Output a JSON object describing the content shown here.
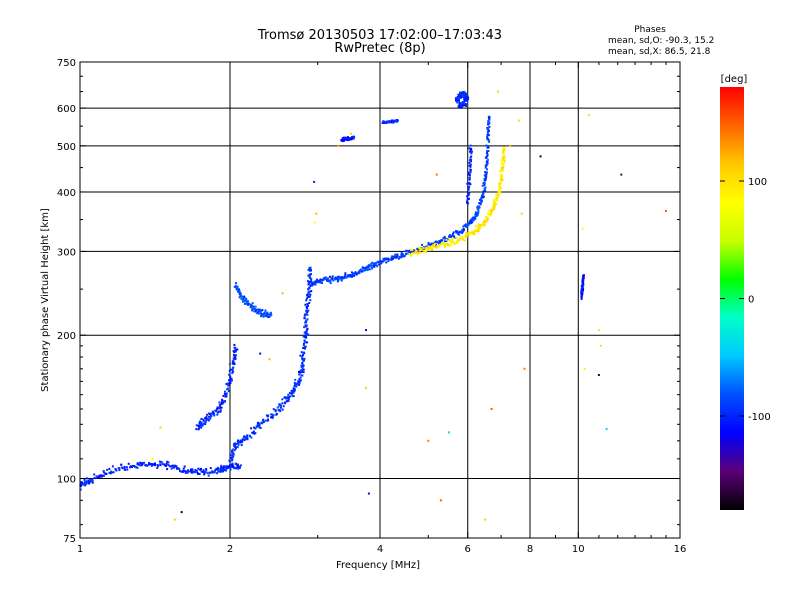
{
  "title": {
    "line1": "Tromsø 20130503 17:02:00–17:03:43",
    "line2": "RwPretec (8p)"
  },
  "phase_info": {
    "header": "Phases",
    "line_o": "mean, sd,O: -90.3, 15.2",
    "line_x": "mean, sd,X:  86.5, 21.8"
  },
  "colorbar": {
    "label": "[deg]",
    "ticks": [
      "100",
      "0",
      "-100"
    ],
    "tick_values": [
      100,
      0,
      -100
    ],
    "range": [
      -180,
      180
    ],
    "colormap": [
      "#000000",
      "#5a0078",
      "#0000ff",
      "#0050ff",
      "#00c8ff",
      "#00ffc8",
      "#00ff00",
      "#c8ff00",
      "#ffff00",
      "#ffc800",
      "#ff6400",
      "#ff0000"
    ]
  },
  "chart_data": {
    "type": "scatter",
    "title": "Tromsø 20130503 17:02:00–17:03:43",
    "subtitle": "RwPretec (8p)",
    "xlabel": "Frequency [MHz]",
    "ylabel": "Stationary phase Virtual Height [km]",
    "xscale": "log",
    "yscale": "log",
    "xlim": [
      1,
      16
    ],
    "ylim": [
      75,
      750
    ],
    "xticks": [
      "1",
      "2",
      "4",
      "6",
      "8",
      "10",
      "16"
    ],
    "xtick_values": [
      1,
      2,
      4,
      6,
      8,
      10,
      16
    ],
    "yticks": [
      "75",
      "100",
      "200",
      "300",
      "400",
      "500",
      "600",
      "750"
    ],
    "ytick_values": [
      75,
      100,
      200,
      300,
      400,
      500,
      600,
      750
    ],
    "vgrid": [
      2,
      4,
      6,
      8,
      10
    ],
    "hgrid": [
      100,
      200,
      300,
      400,
      500,
      600
    ],
    "grid": true,
    "color_dimension": "phase [deg]",
    "traces": [
      {
        "name": "",
        "phase": -100,
        "spread": 0.012,
        "points": [
          [
            1.0,
            97
          ],
          [
            1.05,
            99
          ],
          [
            1.15,
            104
          ],
          [
            1.3,
            107
          ],
          [
            1.45,
            107
          ],
          [
            1.6,
            104
          ],
          [
            1.75,
            103
          ],
          [
            1.9,
            104
          ],
          [
            2.0,
            106
          ],
          [
            2.1,
            106
          ]
        ]
      },
      {
        "name": "",
        "phase": -100,
        "spread": 0.015,
        "points": [
          [
            1.72,
            128
          ],
          [
            1.8,
            134
          ],
          [
            1.9,
            140
          ],
          [
            1.97,
            150
          ],
          [
            2.02,
            170
          ],
          [
            2.05,
            190
          ]
        ]
      },
      {
        "name": "",
        "phase": -95,
        "spread": 0.015,
        "points": [
          [
            2.0,
            108
          ],
          [
            2.05,
            118
          ],
          [
            2.15,
            122
          ],
          [
            2.3,
            130
          ],
          [
            2.5,
            140
          ],
          [
            2.65,
            150
          ],
          [
            2.75,
            160
          ],
          [
            2.8,
            175
          ],
          [
            2.83,
            195
          ],
          [
            2.85,
            220
          ],
          [
            2.88,
            250
          ],
          [
            2.9,
            280
          ]
        ]
      },
      {
        "name": "",
        "phase": -90,
        "spread": 0.01,
        "points": [
          [
            2.9,
            255
          ],
          [
            3.0,
            260
          ],
          [
            3.2,
            262
          ],
          [
            3.4,
            266
          ],
          [
            3.6,
            270
          ],
          [
            3.8,
            278
          ],
          [
            4.0,
            285
          ],
          [
            4.3,
            292
          ],
          [
            4.6,
            300
          ],
          [
            5.0,
            308
          ],
          [
            5.4,
            318
          ],
          [
            5.8,
            330
          ],
          [
            6.1,
            345
          ],
          [
            6.3,
            365
          ],
          [
            6.45,
            400
          ],
          [
            6.55,
            450
          ],
          [
            6.6,
            520
          ],
          [
            6.62,
            580
          ]
        ]
      },
      {
        "name": "",
        "phase": 95,
        "spread": 0.012,
        "points": [
          [
            4.6,
            298
          ],
          [
            5.0,
            305
          ],
          [
            5.4,
            310
          ],
          [
            5.8,
            318
          ],
          [
            6.2,
            330
          ],
          [
            6.5,
            345
          ],
          [
            6.75,
            370
          ],
          [
            6.95,
            405
          ],
          [
            7.05,
            450
          ],
          [
            7.1,
            500
          ]
        ]
      },
      {
        "name": "",
        "phase": -85,
        "spread": 0.012,
        "points": [
          [
            2.05,
            255
          ],
          [
            2.12,
            240
          ],
          [
            2.22,
            228
          ],
          [
            2.32,
            222
          ],
          [
            2.42,
            220
          ]
        ]
      },
      {
        "name": "",
        "phase": -100,
        "spread": 0.01,
        "points": [
          [
            5.7,
            620
          ],
          [
            5.8,
            640
          ],
          [
            5.9,
            640
          ],
          [
            6.0,
            630
          ],
          [
            5.75,
            605
          ],
          [
            5.95,
            615
          ]
        ]
      },
      {
        "name": "",
        "phase": -100,
        "spread": 0.005,
        "points": [
          [
            4.05,
            560
          ],
          [
            4.2,
            562
          ],
          [
            4.35,
            565
          ]
        ]
      },
      {
        "name": "",
        "phase": -105,
        "spread": 0.005,
        "points": [
          [
            3.35,
            515
          ],
          [
            3.45,
            518
          ],
          [
            3.55,
            520
          ]
        ]
      },
      {
        "name": "",
        "phase": -100,
        "spread": 0.01,
        "points": [
          [
            6.0,
            380
          ],
          [
            6.05,
            440
          ],
          [
            6.1,
            500
          ]
        ]
      },
      {
        "name": "",
        "phase": -105,
        "spread": 0.005,
        "points": [
          [
            10.15,
            240
          ],
          [
            10.2,
            255
          ],
          [
            10.25,
            268
          ]
        ]
      }
    ],
    "outliers": [
      [
        1.4,
        110,
        80
      ],
      [
        1.45,
        128,
        110
      ],
      [
        1.55,
        82,
        110
      ],
      [
        1.6,
        85,
        -170
      ],
      [
        2.55,
        245,
        120
      ],
      [
        2.95,
        420,
        -100
      ],
      [
        2.98,
        360,
        120
      ],
      [
        2.96,
        345,
        80
      ],
      [
        3.5,
        530,
        110
      ],
      [
        3.3,
        500,
        130
      ],
      [
        3.75,
        205,
        -120
      ],
      [
        3.75,
        155,
        110
      ],
      [
        3.8,
        93,
        -110
      ],
      [
        5.0,
        120,
        140
      ],
      [
        5.5,
        125,
        -40
      ],
      [
        5.2,
        435,
        140
      ],
      [
        6.9,
        650,
        110
      ],
      [
        7.3,
        500,
        120
      ],
      [
        7.6,
        565,
        100
      ],
      [
        7.7,
        360,
        110
      ],
      [
        8.4,
        475,
        -170
      ],
      [
        7.8,
        170,
        140
      ],
      [
        10.3,
        170,
        90
      ],
      [
        10.5,
        580,
        100
      ],
      [
        11.0,
        205,
        100
      ],
      [
        11.1,
        190,
        100
      ],
      [
        11.0,
        165,
        -160
      ],
      [
        12.2,
        435,
        -150
      ],
      [
        15.0,
        365,
        150
      ],
      [
        11.4,
        127,
        -40
      ],
      [
        10.2,
        335,
        80
      ],
      [
        6.5,
        82,
        110
      ],
      [
        2.3,
        183,
        -120
      ],
      [
        2.4,
        178,
        120
      ],
      [
        6.7,
        140,
        150
      ],
      [
        5.3,
        90,
        150
      ]
    ]
  }
}
